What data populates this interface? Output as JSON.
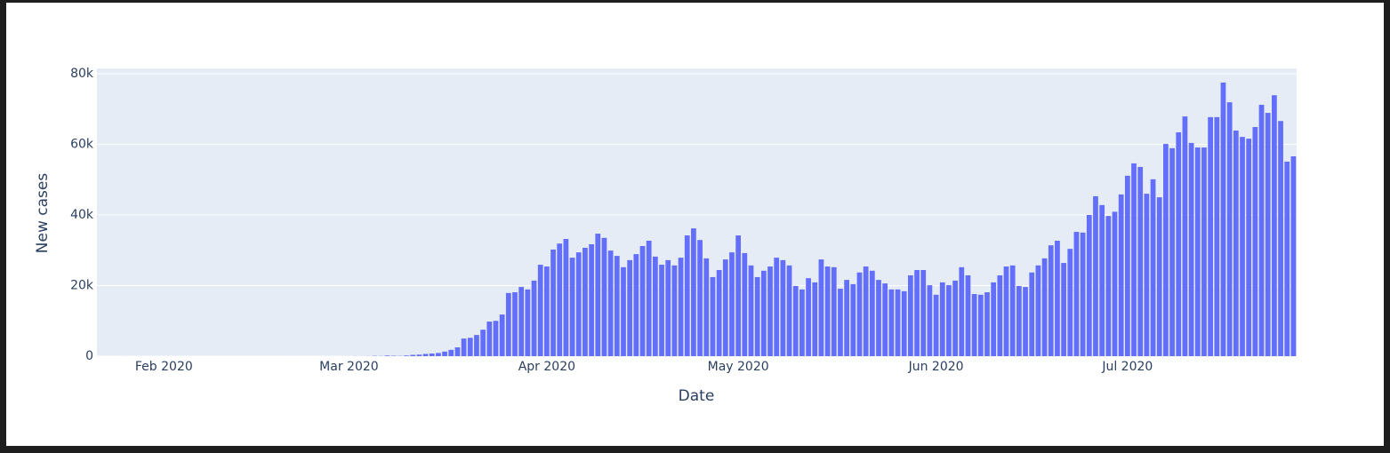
{
  "chart_data": {
    "type": "bar",
    "xlabel": "Date",
    "ylabel": "New cases",
    "color": "#636efa",
    "grid": true,
    "xlim": [
      "2020-01-21T12:00:00Z",
      "2020-07-27T12:00:00Z"
    ],
    "xticks": [
      {
        "value": "2020-02-01",
        "label": "Feb 2020"
      },
      {
        "value": "2020-03-01",
        "label": "Mar 2020"
      },
      {
        "value": "2020-04-01",
        "label": "Apr 2020"
      },
      {
        "value": "2020-05-01",
        "label": "May 2020"
      },
      {
        "value": "2020-06-01",
        "label": "Jun 2020"
      },
      {
        "value": "2020-07-01",
        "label": "Jul 2020"
      }
    ],
    "ylim": [
      0,
      81500
    ],
    "yticks": [
      0,
      {
        "value": 20000,
        "label": "20k"
      },
      {
        "value": 40000,
        "label": "40k"
      },
      {
        "value": 60000,
        "label": "60k"
      },
      {
        "value": 80000,
        "label": "80k"
      }
    ],
    "x": [
      "2020-01-22",
      "2020-01-23",
      "2020-01-24",
      "2020-01-25",
      "2020-01-26",
      "2020-01-27",
      "2020-01-28",
      "2020-01-29",
      "2020-01-30",
      "2020-01-31",
      "2020-02-01",
      "2020-02-02",
      "2020-02-03",
      "2020-02-04",
      "2020-02-05",
      "2020-02-06",
      "2020-02-07",
      "2020-02-08",
      "2020-02-09",
      "2020-02-10",
      "2020-02-11",
      "2020-02-12",
      "2020-02-13",
      "2020-02-14",
      "2020-02-15",
      "2020-02-16",
      "2020-02-17",
      "2020-02-18",
      "2020-02-19",
      "2020-02-20",
      "2020-02-21",
      "2020-02-22",
      "2020-02-23",
      "2020-02-24",
      "2020-02-25",
      "2020-02-26",
      "2020-02-27",
      "2020-02-28",
      "2020-02-29",
      "2020-03-01",
      "2020-03-02",
      "2020-03-03",
      "2020-03-04",
      "2020-03-05",
      "2020-03-06",
      "2020-03-07",
      "2020-03-08",
      "2020-03-09",
      "2020-03-10",
      "2020-03-11",
      "2020-03-12",
      "2020-03-13",
      "2020-03-14",
      "2020-03-15",
      "2020-03-16",
      "2020-03-17",
      "2020-03-18",
      "2020-03-19",
      "2020-03-20",
      "2020-03-21",
      "2020-03-22",
      "2020-03-23",
      "2020-03-24",
      "2020-03-25",
      "2020-03-26",
      "2020-03-27",
      "2020-03-28",
      "2020-03-29",
      "2020-03-30",
      "2020-03-31",
      "2020-04-01",
      "2020-04-02",
      "2020-04-03",
      "2020-04-04",
      "2020-04-05",
      "2020-04-06",
      "2020-04-07",
      "2020-04-08",
      "2020-04-09",
      "2020-04-10",
      "2020-04-11",
      "2020-04-12",
      "2020-04-13",
      "2020-04-14",
      "2020-04-15",
      "2020-04-16",
      "2020-04-17",
      "2020-04-18",
      "2020-04-19",
      "2020-04-20",
      "2020-04-21",
      "2020-04-22",
      "2020-04-23",
      "2020-04-24",
      "2020-04-25",
      "2020-04-26",
      "2020-04-27",
      "2020-04-28",
      "2020-04-29",
      "2020-04-30",
      "2020-05-01",
      "2020-05-02",
      "2020-05-03",
      "2020-05-04",
      "2020-05-05",
      "2020-05-06",
      "2020-05-07",
      "2020-05-08",
      "2020-05-09",
      "2020-05-10",
      "2020-05-11",
      "2020-05-12",
      "2020-05-13",
      "2020-05-14",
      "2020-05-15",
      "2020-05-16",
      "2020-05-17",
      "2020-05-18",
      "2020-05-19",
      "2020-05-20",
      "2020-05-21",
      "2020-05-22",
      "2020-05-23",
      "2020-05-24",
      "2020-05-25",
      "2020-05-26",
      "2020-05-27",
      "2020-05-28",
      "2020-05-29",
      "2020-05-30",
      "2020-05-31",
      "2020-06-01",
      "2020-06-02",
      "2020-06-03",
      "2020-06-04",
      "2020-06-05",
      "2020-06-06",
      "2020-06-07",
      "2020-06-08",
      "2020-06-09",
      "2020-06-10",
      "2020-06-11",
      "2020-06-12",
      "2020-06-13",
      "2020-06-14",
      "2020-06-15",
      "2020-06-16",
      "2020-06-17",
      "2020-06-18",
      "2020-06-19",
      "2020-06-20",
      "2020-06-21",
      "2020-06-22",
      "2020-06-23",
      "2020-06-24",
      "2020-06-25",
      "2020-06-26",
      "2020-06-27",
      "2020-06-28",
      "2020-06-29",
      "2020-06-30",
      "2020-07-01",
      "2020-07-02",
      "2020-07-03",
      "2020-07-04",
      "2020-07-05",
      "2020-07-06",
      "2020-07-07",
      "2020-07-08",
      "2020-07-09",
      "2020-07-10",
      "2020-07-11",
      "2020-07-12",
      "2020-07-13",
      "2020-07-14",
      "2020-07-15",
      "2020-07-16",
      "2020-07-17",
      "2020-07-18",
      "2020-07-19",
      "2020-07-20",
      "2020-07-21",
      "2020-07-22",
      "2020-07-23",
      "2020-07-24",
      "2020-07-25",
      "2020-07-26",
      "2020-07-27"
    ],
    "values": [
      1,
      0,
      1,
      0,
      3,
      0,
      0,
      0,
      0,
      1,
      1,
      0,
      3,
      0,
      0,
      0,
      0,
      0,
      0,
      0,
      1,
      0,
      1,
      0,
      0,
      0,
      0,
      0,
      0,
      0,
      2,
      0,
      0,
      0,
      0,
      0,
      0,
      3,
      7,
      8,
      23,
      19,
      33,
      77,
      53,
      166,
      116,
      75,
      188,
      365,
      439,
      633,
      759,
      900,
      1300,
      1800,
      2500,
      5000,
      5200,
      6000,
      7500,
      9800,
      10000,
      11800,
      17900,
      18100,
      19600,
      18900,
      21400,
      25900,
      25400,
      30200,
      31900,
      33200,
      27900,
      29400,
      30700,
      31700,
      34700,
      33500,
      29900,
      28400,
      25200,
      27200,
      28900,
      31200,
      32700,
      28200,
      25900,
      27200,
      25700,
      27900,
      34200,
      36200,
      32900,
      27700,
      22400,
      24400,
      27400,
      29400,
      34200,
      29200,
      25700,
      22400,
      24200,
      25400,
      27900,
      27200,
      25700,
      19900,
      18900,
      22100,
      20900,
      27400,
      25400,
      25200,
      19100,
      21600,
      20400,
      23700,
      25400,
      24200,
      21600,
      20600,
      18900,
      18900,
      18400,
      22900,
      24400,
      24400,
      20100,
      17400,
      20900,
      20100,
      21400,
      25200,
      22900,
      17600,
      17400,
      18100,
      20900,
      22900,
      25400,
      25700,
      19900,
      19600,
      23700,
      25700,
      27700,
      31400,
      32700,
      26400,
      30400,
      35200,
      35000,
      40000,
      45300,
      42800,
      39700,
      40900,
      45800,
      51100,
      54600,
      53600,
      46000,
      50100,
      45000,
      60100,
      58900,
      63400,
      67900,
      60400,
      59100,
      59100,
      67700,
      67700,
      77500,
      71900,
      63900,
      62100,
      61600,
      64900,
      71200,
      68900,
      73900,
      66600,
      55100,
      56600
    ]
  }
}
